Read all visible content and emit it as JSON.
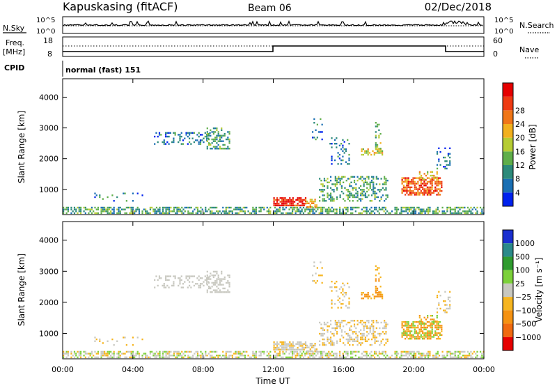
{
  "header": {
    "station": "Kapuskasing (fitACF)",
    "beam": "Beam 06",
    "date": "02/Dec/2018"
  },
  "panels": {
    "nsky_label": "N.Sky",
    "nsearch_label": "N.Search",
    "freq_label_1": "Freq.",
    "freq_label_2": "[MHz]",
    "nave_label": "Nave",
    "cpid_label": "CPID",
    "cpid_value": "normal (fast) 151",
    "noise_ticks": [
      "10^5",
      "10^0"
    ],
    "freq_ticks": [
      "18",
      "8"
    ],
    "nave_ticks": [
      "60",
      "0"
    ]
  },
  "chart_data": [
    {
      "type": "heatmap",
      "name": "power",
      "ylabel": "Slant Range [km]",
      "ylim": [
        180,
        4600
      ],
      "yticks": [
        1000,
        2000,
        3000,
        4000
      ],
      "xlabel": "",
      "xlim": [
        0,
        24
      ],
      "colorbar_label": "Power [dB]",
      "colorbar_ticks": [
        "4",
        "8",
        "12",
        "16",
        "20",
        "24",
        "28"
      ],
      "colorbar_colors": [
        "#0022ee",
        "#1a6fb3",
        "#2c8a7a",
        "#5fae4a",
        "#b6cc33",
        "#f2b01e",
        "#f07618",
        "#ee3a12",
        "#e60000"
      ]
    },
    {
      "type": "heatmap",
      "name": "velocity",
      "ylabel": "Slant Range [km]",
      "ylim": [
        180,
        4600
      ],
      "yticks": [
        1000,
        2000,
        3000,
        4000
      ],
      "xlabel": "Time UT",
      "xlim": [
        0,
        24
      ],
      "xticks": [
        "00:00",
        "04:00",
        "08:00",
        "12:00",
        "16:00",
        "20:00",
        "00:00"
      ],
      "colorbar_label": "Velocity [m s⁻¹]",
      "colorbar_ticks": [
        "1000",
        "500",
        "100",
        "25",
        "−25",
        "−100",
        "−500",
        "−1000"
      ],
      "colorbar_colors": [
        "#1a2fd0",
        "#2b8a8a",
        "#2f9b2f",
        "#7cd13a",
        "#c8c8c0",
        "#f6b520",
        "#f59212",
        "#f06a10",
        "#e60000"
      ]
    }
  ]
}
